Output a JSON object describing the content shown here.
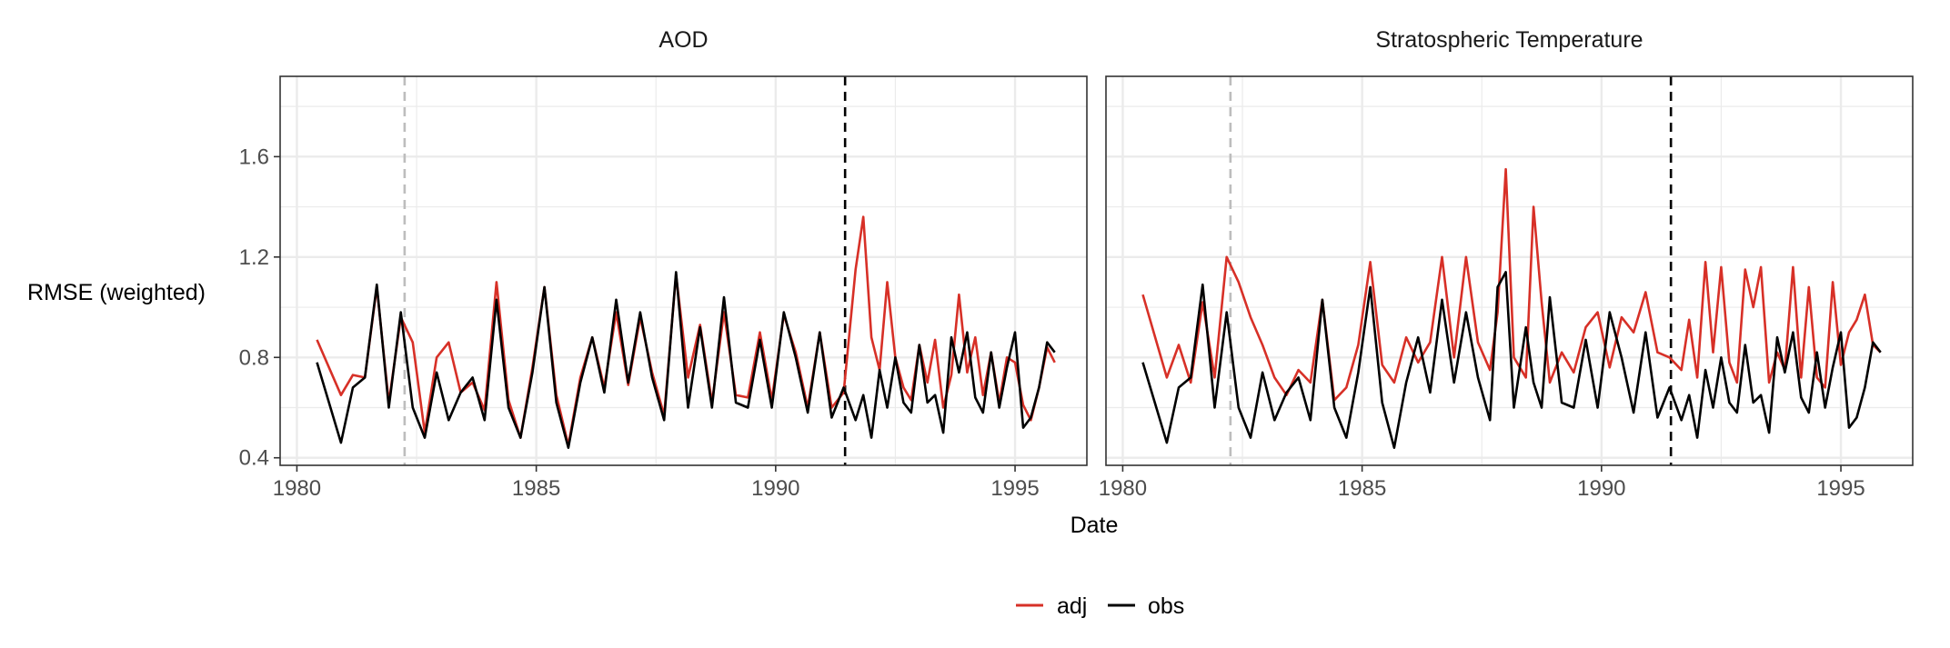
{
  "figure": {
    "y_title": "RMSE (weighted)",
    "x_title": "Date",
    "legend_items": [
      "adj",
      "obs"
    ]
  },
  "colors": {
    "adj": "#d73027",
    "obs": "#000000",
    "grid": "#ebebeb",
    "panel_border": "#333333",
    "ref_line_early": "#bdbdbd",
    "ref_line_late": "#000000"
  },
  "chart_data": [
    {
      "type": "line",
      "title": "AOD",
      "xlabel": "Date",
      "ylabel": "RMSE (weighted)",
      "xlim": [
        1979.65,
        1996.5
      ],
      "ylim": [
        0.37,
        1.92
      ],
      "x_ticks": [
        1980,
        1985,
        1990,
        1995
      ],
      "y_ticks": [
        0.4,
        0.8,
        1.2,
        1.6
      ],
      "x_tick_labels": [
        "1980",
        "1985",
        "1990",
        "1995"
      ],
      "y_tick_labels": [
        "0.4",
        "0.8",
        "1.2",
        "1.6"
      ],
      "reference_lines": [
        {
          "x": 1982.25,
          "style": "dashed",
          "color": "grey"
        },
        {
          "x": 1991.45,
          "style": "dashed",
          "color": "black"
        }
      ],
      "grid": true,
      "legend_position": "bottom",
      "series": [
        {
          "name": "adj",
          "x": [
            1980.42,
            1980.92,
            1981.17,
            1981.42,
            1981.67,
            1981.92,
            1982.17,
            1982.42,
            1982.67,
            1982.92,
            1983.17,
            1983.42,
            1983.67,
            1983.92,
            1984.17,
            1984.42,
            1984.67,
            1984.92,
            1985.17,
            1985.42,
            1985.67,
            1985.92,
            1986.17,
            1986.42,
            1986.67,
            1986.92,
            1987.17,
            1987.42,
            1987.67,
            1987.92,
            1988.17,
            1988.42,
            1988.67,
            1988.92,
            1989.17,
            1989.42,
            1989.67,
            1989.92,
            1990.17,
            1990.42,
            1990.67,
            1990.92,
            1991.17,
            1991.42,
            1991.67,
            1991.83,
            1992.0,
            1992.17,
            1992.33,
            1992.5,
            1992.67,
            1992.83,
            1993.0,
            1993.17,
            1993.33,
            1993.5,
            1993.67,
            1993.83,
            1994.0,
            1994.17,
            1994.33,
            1994.5,
            1994.67,
            1994.83,
            1995.0,
            1995.17,
            1995.33,
            1995.5,
            1995.67,
            1995.83
          ],
          "values": [
            0.87,
            0.65,
            0.73,
            0.72,
            1.08,
            0.62,
            0.96,
            0.86,
            0.5,
            0.8,
            0.86,
            0.66,
            0.7,
            0.59,
            1.1,
            0.63,
            0.48,
            0.76,
            1.08,
            0.65,
            0.45,
            0.72,
            0.88,
            0.68,
            0.98,
            0.69,
            0.96,
            0.74,
            0.57,
            1.13,
            0.72,
            0.93,
            0.62,
            0.98,
            0.65,
            0.64,
            0.9,
            0.63,
            0.97,
            0.82,
            0.6,
            0.9,
            0.6,
            0.66,
            1.15,
            1.36,
            0.88,
            0.75,
            1.1,
            0.8,
            0.68,
            0.63,
            0.85,
            0.7,
            0.87,
            0.6,
            0.73,
            1.05,
            0.74,
            0.88,
            0.65,
            0.82,
            0.62,
            0.8,
            0.78,
            0.61,
            0.55,
            0.68,
            0.84,
            0.78
          ]
        },
        {
          "name": "obs",
          "x": [
            1980.42,
            1980.92,
            1981.17,
            1981.42,
            1981.67,
            1981.92,
            1982.17,
            1982.42,
            1982.67,
            1982.92,
            1983.17,
            1983.42,
            1983.67,
            1983.92,
            1984.17,
            1984.42,
            1984.67,
            1984.92,
            1985.17,
            1985.42,
            1985.67,
            1985.92,
            1986.17,
            1986.42,
            1986.67,
            1986.92,
            1987.17,
            1987.42,
            1987.67,
            1987.92,
            1988.17,
            1988.42,
            1988.67,
            1988.92,
            1989.17,
            1989.42,
            1989.67,
            1989.92,
            1990.17,
            1990.42,
            1990.67,
            1990.92,
            1991.17,
            1991.42,
            1991.67,
            1991.83,
            1992.0,
            1992.17,
            1992.33,
            1992.5,
            1992.67,
            1992.83,
            1993.0,
            1993.17,
            1993.33,
            1993.5,
            1993.67,
            1993.83,
            1994.0,
            1994.17,
            1994.33,
            1994.5,
            1994.67,
            1994.83,
            1995.0,
            1995.17,
            1995.33,
            1995.5,
            1995.67,
            1995.83
          ],
          "values": [
            0.78,
            0.46,
            0.68,
            0.72,
            1.09,
            0.6,
            0.98,
            0.6,
            0.48,
            0.74,
            0.55,
            0.66,
            0.72,
            0.55,
            1.03,
            0.6,
            0.48,
            0.74,
            1.08,
            0.62,
            0.44,
            0.7,
            0.88,
            0.66,
            1.03,
            0.7,
            0.98,
            0.72,
            0.55,
            1.14,
            0.6,
            0.92,
            0.6,
            1.04,
            0.62,
            0.6,
            0.87,
            0.6,
            0.98,
            0.8,
            0.58,
            0.9,
            0.56,
            0.68,
            0.55,
            0.65,
            0.48,
            0.75,
            0.6,
            0.8,
            0.62,
            0.58,
            0.85,
            0.62,
            0.65,
            0.5,
            0.88,
            0.74,
            0.9,
            0.64,
            0.58,
            0.82,
            0.6,
            0.76,
            0.9,
            0.52,
            0.56,
            0.68,
            0.86,
            0.82
          ]
        }
      ]
    },
    {
      "type": "line",
      "title": "Stratospheric Temperature",
      "xlabel": "Date",
      "ylabel": "RMSE (weighted)",
      "xlim": [
        1979.65,
        1996.5
      ],
      "ylim": [
        0.37,
        1.92
      ],
      "x_ticks": [
        1980,
        1985,
        1990,
        1995
      ],
      "y_ticks": [
        0.4,
        0.8,
        1.2,
        1.6
      ],
      "x_tick_labels": [
        "1980",
        "1985",
        "1990",
        "1995"
      ],
      "y_tick_labels": [
        "0.4",
        "0.8",
        "1.2",
        "1.6"
      ],
      "reference_lines": [
        {
          "x": 1982.25,
          "style": "dashed",
          "color": "grey"
        },
        {
          "x": 1991.45,
          "style": "dashed",
          "color": "black"
        }
      ],
      "grid": true,
      "legend_position": "bottom",
      "series": [
        {
          "name": "adj",
          "x": [
            1980.42,
            1980.92,
            1981.17,
            1981.42,
            1981.67,
            1981.92,
            1982.17,
            1982.42,
            1982.67,
            1982.92,
            1983.17,
            1983.42,
            1983.67,
            1983.92,
            1984.17,
            1984.42,
            1984.67,
            1984.92,
            1985.17,
            1985.42,
            1985.67,
            1985.92,
            1986.17,
            1986.42,
            1986.67,
            1986.92,
            1987.17,
            1987.42,
            1987.67,
            1987.83,
            1988.0,
            1988.17,
            1988.42,
            1988.58,
            1988.75,
            1988.92,
            1989.17,
            1989.42,
            1989.67,
            1989.92,
            1990.17,
            1990.42,
            1990.67,
            1990.92,
            1991.17,
            1991.42,
            1991.67,
            1991.83,
            1992.0,
            1992.17,
            1992.33,
            1992.5,
            1992.67,
            1992.83,
            1993.0,
            1993.17,
            1993.33,
            1993.5,
            1993.67,
            1993.83,
            1994.0,
            1994.17,
            1994.33,
            1994.5,
            1994.67,
            1994.83,
            1995.0,
            1995.17,
            1995.33,
            1995.5,
            1995.67,
            1995.83
          ],
          "values": [
            1.05,
            0.72,
            0.85,
            0.7,
            1.02,
            0.72,
            1.2,
            1.1,
            0.96,
            0.85,
            0.72,
            0.65,
            0.75,
            0.7,
            1.03,
            0.63,
            0.68,
            0.85,
            1.18,
            0.77,
            0.7,
            0.88,
            0.78,
            0.86,
            1.2,
            0.8,
            1.2,
            0.86,
            0.75,
            0.98,
            1.55,
            0.8,
            0.72,
            1.4,
            1.02,
            0.7,
            0.82,
            0.74,
            0.92,
            0.98,
            0.76,
            0.96,
            0.9,
            1.06,
            0.82,
            0.8,
            0.75,
            0.95,
            0.72,
            1.18,
            0.82,
            1.16,
            0.78,
            0.7,
            1.15,
            1.0,
            1.16,
            0.7,
            0.82,
            0.75,
            1.16,
            0.72,
            1.08,
            0.72,
            0.68,
            1.1,
            0.77,
            0.9,
            0.95,
            1.05,
            0.85,
            0.82
          ]
        },
        {
          "name": "obs",
          "x": [
            1980.42,
            1980.92,
            1981.17,
            1981.42,
            1981.67,
            1981.92,
            1982.17,
            1982.42,
            1982.67,
            1982.92,
            1983.17,
            1983.42,
            1983.67,
            1983.92,
            1984.17,
            1984.42,
            1984.67,
            1984.92,
            1985.17,
            1985.42,
            1985.67,
            1985.92,
            1986.17,
            1986.42,
            1986.67,
            1986.92,
            1987.17,
            1987.42,
            1987.67,
            1987.83,
            1988.0,
            1988.17,
            1988.42,
            1988.58,
            1988.75,
            1988.92,
            1989.17,
            1989.42,
            1989.67,
            1989.92,
            1990.17,
            1990.42,
            1990.67,
            1990.92,
            1991.17,
            1991.42,
            1991.67,
            1991.83,
            1992.0,
            1992.17,
            1992.33,
            1992.5,
            1992.67,
            1992.83,
            1993.0,
            1993.17,
            1993.33,
            1993.5,
            1993.67,
            1993.83,
            1994.0,
            1994.17,
            1994.33,
            1994.5,
            1994.67,
            1994.83,
            1995.0,
            1995.17,
            1995.33,
            1995.5,
            1995.67,
            1995.83
          ],
          "values": [
            0.78,
            0.46,
            0.68,
            0.72,
            1.09,
            0.6,
            0.98,
            0.6,
            0.48,
            0.74,
            0.55,
            0.66,
            0.72,
            0.55,
            1.03,
            0.6,
            0.48,
            0.74,
            1.08,
            0.62,
            0.44,
            0.7,
            0.88,
            0.66,
            1.03,
            0.7,
            0.98,
            0.72,
            0.55,
            1.08,
            1.14,
            0.6,
            0.92,
            0.7,
            0.6,
            1.04,
            0.62,
            0.6,
            0.87,
            0.6,
            0.98,
            0.8,
            0.58,
            0.9,
            0.56,
            0.68,
            0.55,
            0.65,
            0.48,
            0.75,
            0.6,
            0.8,
            0.62,
            0.58,
            0.85,
            0.62,
            0.65,
            0.5,
            0.88,
            0.74,
            0.9,
            0.64,
            0.58,
            0.82,
            0.6,
            0.76,
            0.9,
            0.52,
            0.56,
            0.68,
            0.86,
            0.82
          ]
        }
      ]
    }
  ]
}
